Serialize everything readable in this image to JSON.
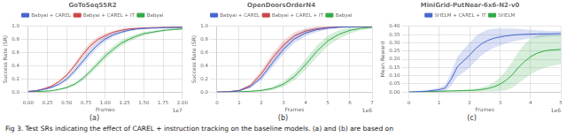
{
  "chart_data": [
    {
      "type": "line",
      "title": "GoToSeq55R2",
      "x_label": "Frames",
      "y_label": "Success Rate (SR)",
      "annotation": "1e7",
      "panel_label": "(a)",
      "xlim": [
        0,
        2.0
      ],
      "ylim": [
        0,
        1.0
      ],
      "xticks": [
        {
          "value": 0,
          "label": "0.00"
        },
        {
          "value": 0.25,
          "label": "0.25"
        },
        {
          "value": 0.5,
          "label": "0.50"
        },
        {
          "value": 0.75,
          "label": "0.75"
        },
        {
          "value": 1.0,
          "label": "1.00"
        },
        {
          "value": 1.25,
          "label": "1.25"
        },
        {
          "value": 1.5,
          "label": "1.50"
        },
        {
          "value": 1.75,
          "label": "1.75"
        },
        {
          "value": 2.0,
          "label": "2.00"
        }
      ],
      "yticks": [
        {
          "value": 0,
          "label": "0.0"
        },
        {
          "value": 0.2,
          "label": "0.2"
        },
        {
          "value": 0.4,
          "label": "0.4"
        },
        {
          "value": 0.6,
          "label": "0.6"
        },
        {
          "value": 0.8,
          "label": "0.8"
        },
        {
          "value": 1.0,
          "label": "1.0"
        }
      ],
      "grid": true,
      "legend": "top",
      "series": [
        {
          "name": "Babyai + CAREL",
          "color": "#4466cc",
          "x": [
            0,
            0.1,
            0.2,
            0.3,
            0.4,
            0.5,
            0.6,
            0.7,
            0.8,
            0.9,
            1.0,
            1.1,
            1.2,
            1.3,
            1.4,
            1.5,
            1.6,
            1.7,
            1.8,
            1.9,
            2.0
          ],
          "values": [
            0.01,
            0.02,
            0.04,
            0.07,
            0.12,
            0.2,
            0.32,
            0.46,
            0.6,
            0.72,
            0.81,
            0.87,
            0.91,
            0.94,
            0.96,
            0.97,
            0.975,
            0.978,
            0.981,
            0.983,
            0.985
          ],
          "lower": [
            0.005,
            0.013,
            0.03,
            0.055,
            0.1,
            0.17,
            0.28,
            0.41,
            0.545,
            0.67,
            0.77,
            0.84,
            0.885,
            0.92,
            0.945,
            0.958,
            0.965,
            0.97,
            0.974,
            0.977,
            0.98
          ],
          "upper": [
            0.015,
            0.027,
            0.05,
            0.085,
            0.14,
            0.23,
            0.36,
            0.51,
            0.655,
            0.77,
            0.85,
            0.9,
            0.935,
            0.96,
            0.975,
            0.982,
            0.985,
            0.986,
            0.988,
            0.989,
            0.99
          ]
        },
        {
          "name": "Babyai + CAREL + IT",
          "color": "#cc4444",
          "x": [
            0,
            0.1,
            0.2,
            0.3,
            0.4,
            0.5,
            0.6,
            0.7,
            0.8,
            0.9,
            1.0,
            1.1,
            1.2,
            1.3,
            1.4,
            1.5,
            1.6,
            1.7,
            1.8,
            1.9,
            2.0
          ],
          "values": [
            0.01,
            0.02,
            0.05,
            0.09,
            0.16,
            0.26,
            0.4,
            0.56,
            0.7,
            0.8,
            0.86,
            0.91,
            0.94,
            0.96,
            0.97,
            0.975,
            0.98,
            0.983,
            0.985,
            0.987,
            0.988
          ],
          "lower": [
            0.006,
            0.014,
            0.04,
            0.075,
            0.14,
            0.23,
            0.36,
            0.51,
            0.65,
            0.76,
            0.825,
            0.885,
            0.92,
            0.945,
            0.958,
            0.965,
            0.972,
            0.976,
            0.979,
            0.982,
            0.984
          ],
          "upper": [
            0.014,
            0.026,
            0.06,
            0.105,
            0.18,
            0.29,
            0.44,
            0.61,
            0.75,
            0.84,
            0.895,
            0.935,
            0.96,
            0.975,
            0.982,
            0.985,
            0.988,
            0.99,
            0.991,
            0.992,
            0.992
          ]
        },
        {
          "name": "Babyai",
          "color": "#33aa44",
          "x": [
            0,
            0.1,
            0.2,
            0.3,
            0.4,
            0.5,
            0.6,
            0.7,
            0.8,
            0.9,
            1.0,
            1.1,
            1.2,
            1.3,
            1.4,
            1.5,
            1.6,
            1.7,
            1.8,
            1.9,
            2.0
          ],
          "values": [
            0.005,
            0.008,
            0.012,
            0.02,
            0.04,
            0.07,
            0.12,
            0.2,
            0.31,
            0.43,
            0.55,
            0.65,
            0.74,
            0.8,
            0.85,
            0.89,
            0.91,
            0.93,
            0.945,
            0.955,
            0.962
          ],
          "lower": [
            0.002,
            0.004,
            0.006,
            0.012,
            0.028,
            0.052,
            0.095,
            0.167,
            0.27,
            0.382,
            0.5,
            0.6,
            0.695,
            0.76,
            0.815,
            0.862,
            0.888,
            0.912,
            0.93,
            0.943,
            0.952
          ],
          "upper": [
            0.008,
            0.012,
            0.018,
            0.028,
            0.052,
            0.088,
            0.145,
            0.233,
            0.35,
            0.478,
            0.6,
            0.7,
            0.785,
            0.84,
            0.885,
            0.918,
            0.932,
            0.948,
            0.96,
            0.967,
            0.972
          ]
        }
      ]
    },
    {
      "type": "line",
      "title": "OpenDoorsOrderN4",
      "x_label": "Frames",
      "y_label": "Success Rate (SR)",
      "annotation": "1e6",
      "panel_label": "(b)",
      "xlim": [
        0,
        7
      ],
      "ylim": [
        0,
        1.0
      ],
      "xticks": [
        0,
        1,
        2,
        3,
        4,
        5,
        6,
        7
      ],
      "yticks": [
        {
          "value": 0,
          "label": "0.0"
        },
        {
          "value": 0.2,
          "label": "0.2"
        },
        {
          "value": 0.4,
          "label": "0.4"
        },
        {
          "value": 0.6,
          "label": "0.6"
        },
        {
          "value": 0.8,
          "label": "0.8"
        },
        {
          "value": 1.0,
          "label": "1.0"
        }
      ],
      "grid": true,
      "legend": "top",
      "series": [
        {
          "name": "Babyai + CAREL",
          "color": "#4466cc",
          "x": [
            0,
            0.5,
            1.0,
            1.5,
            2.0,
            2.5,
            3.0,
            3.5,
            4.0,
            4.5,
            5.0,
            5.5,
            6.0,
            6.5,
            7.0
          ],
          "values": [
            0.0,
            0.005,
            0.02,
            0.08,
            0.22,
            0.44,
            0.65,
            0.81,
            0.9,
            0.95,
            0.975,
            0.988,
            0.993,
            0.996,
            0.998
          ],
          "lower": [
            0,
            0.002,
            0.012,
            0.06,
            0.18,
            0.38,
            0.58,
            0.75,
            0.85,
            0.915,
            0.953,
            0.974,
            0.984,
            0.99,
            0.994
          ],
          "upper": [
            0.001,
            0.008,
            0.028,
            0.1,
            0.26,
            0.5,
            0.72,
            0.87,
            0.95,
            0.985,
            0.997,
            1.0,
            1.0,
            1.0,
            1.0
          ]
        },
        {
          "name": "Babyai + CAREL + IT",
          "color": "#cc4444",
          "x": [
            0,
            0.5,
            1.0,
            1.5,
            2.0,
            2.5,
            3.0,
            3.5,
            4.0,
            4.5,
            5.0,
            5.5,
            6.0,
            6.5,
            7.0
          ],
          "values": [
            0.0,
            0.005,
            0.025,
            0.1,
            0.28,
            0.52,
            0.72,
            0.86,
            0.93,
            0.965,
            0.982,
            0.991,
            0.995,
            0.997,
            0.998
          ],
          "lower": [
            0,
            0.002,
            0.015,
            0.075,
            0.23,
            0.455,
            0.655,
            0.805,
            0.888,
            0.935,
            0.964,
            0.98,
            0.988,
            0.992,
            0.995
          ],
          "upper": [
            0.001,
            0.008,
            0.035,
            0.125,
            0.33,
            0.585,
            0.785,
            0.915,
            0.972,
            0.995,
            1.0,
            1.0,
            1.0,
            1.0,
            1.0
          ]
        },
        {
          "name": "Babyai",
          "color": "#33aa44",
          "x": [
            0,
            0.5,
            1.0,
            1.5,
            2.0,
            2.5,
            3.0,
            3.5,
            4.0,
            4.5,
            5.0,
            5.5,
            6.0,
            6.5,
            7.0
          ],
          "values": [
            0.0,
            0.002,
            0.005,
            0.012,
            0.025,
            0.055,
            0.12,
            0.24,
            0.42,
            0.62,
            0.78,
            0.88,
            0.94,
            0.972,
            0.988
          ],
          "lower": [
            0,
            0,
            0.001,
            0.004,
            0.01,
            0.03,
            0.08,
            0.18,
            0.34,
            0.53,
            0.7,
            0.815,
            0.892,
            0.942,
            0.97
          ],
          "upper": [
            0.001,
            0.004,
            0.009,
            0.02,
            0.04,
            0.08,
            0.16,
            0.3,
            0.5,
            0.71,
            0.86,
            0.945,
            0.988,
            1.0,
            1.0
          ]
        }
      ]
    },
    {
      "type": "line",
      "title": "MiniGrid-PutNear-6x6-N2-v0",
      "x_label": "Frames",
      "y_label": "Mean Reward",
      "annotation": "1e6",
      "panel_label": "(c)",
      "xlim": [
        0,
        5
      ],
      "ylim": [
        0,
        0.4
      ],
      "xticks": [
        0,
        1,
        2,
        3,
        4,
        5
      ],
      "yticks": [
        {
          "value": 0,
          "label": "0.00"
        },
        {
          "value": 0.05,
          "label": "0.05"
        },
        {
          "value": 0.1,
          "label": "0.10"
        },
        {
          "value": 0.15,
          "label": "0.15"
        },
        {
          "value": 0.2,
          "label": "0.20"
        },
        {
          "value": 0.25,
          "label": "0.25"
        },
        {
          "value": 0.3,
          "label": "0.30"
        },
        {
          "value": 0.35,
          "label": "0.35"
        },
        {
          "value": 0.4,
          "label": "0.40"
        }
      ],
      "grid": true,
      "legend": "top",
      "series": [
        {
          "name": "SHELM + CAREL + IT",
          "color": "#4466cc",
          "x": [
            0,
            0.2,
            0.4,
            0.6,
            0.8,
            1.0,
            1.2,
            1.4,
            1.6,
            1.8,
            2.0,
            2.2,
            2.4,
            2.6,
            2.8,
            3.0,
            3.2,
            3.4,
            3.6,
            3.8,
            4.0,
            4.2,
            4.4,
            4.6,
            4.8,
            5.0
          ],
          "values": [
            0.0,
            0.002,
            0.004,
            0.006,
            0.01,
            0.015,
            0.025,
            0.08,
            0.155,
            0.19,
            0.225,
            0.265,
            0.295,
            0.315,
            0.328,
            0.336,
            0.342,
            0.347,
            0.35,
            0.352,
            0.353,
            0.354,
            0.355,
            0.355,
            0.356,
            0.357
          ],
          "lower": [
            0,
            0,
            0.001,
            0.001,
            0.002,
            0.003,
            0.005,
            0.04,
            0.095,
            0.12,
            0.15,
            0.19,
            0.225,
            0.25,
            0.27,
            0.284,
            0.296,
            0.307,
            0.315,
            0.322,
            0.327,
            0.331,
            0.335,
            0.337,
            0.34,
            0.342
          ],
          "upper": [
            0.001,
            0.004,
            0.007,
            0.011,
            0.018,
            0.027,
            0.045,
            0.12,
            0.215,
            0.26,
            0.3,
            0.34,
            0.365,
            0.38,
            0.386,
            0.388,
            0.388,
            0.387,
            0.385,
            0.382,
            0.379,
            0.377,
            0.375,
            0.373,
            0.372,
            0.372
          ]
        },
        {
          "name": "SHELM",
          "color": "#33aa44",
          "x": [
            0,
            0.2,
            0.4,
            0.6,
            0.8,
            1.0,
            1.2,
            1.4,
            1.6,
            1.8,
            2.0,
            2.2,
            2.4,
            2.6,
            2.8,
            3.0,
            3.2,
            3.4,
            3.6,
            3.8,
            4.0,
            4.2,
            4.4,
            4.6,
            4.8,
            5.0
          ],
          "values": [
            0.0,
            0.001,
            0.002,
            0.003,
            0.004,
            0.005,
            0.006,
            0.007,
            0.008,
            0.009,
            0.01,
            0.012,
            0.016,
            0.022,
            0.032,
            0.048,
            0.072,
            0.105,
            0.148,
            0.185,
            0.215,
            0.235,
            0.248,
            0.255,
            0.258,
            0.26
          ],
          "lower": [
            0,
            0,
            0,
            0.001,
            0.001,
            0.002,
            0.002,
            0.003,
            0.003,
            0.003,
            0.003,
            0.003,
            0.003,
            0.004,
            0.004,
            0.006,
            0.012,
            0.025,
            0.053,
            0.08,
            0.107,
            0.127,
            0.143,
            0.155,
            0.163,
            0.17
          ],
          "upper": [
            0.001,
            0.002,
            0.004,
            0.005,
            0.007,
            0.008,
            0.01,
            0.011,
            0.013,
            0.015,
            0.017,
            0.021,
            0.029,
            0.04,
            0.06,
            0.09,
            0.132,
            0.185,
            0.243,
            0.29,
            0.323,
            0.343,
            0.353,
            0.355,
            0.353,
            0.35
          ]
        }
      ]
    }
  ],
  "caption": "Fig 3.  Test SRs indicating the effect of CAREL + instruction tracking on the baseline models. (a) and (b) are based on"
}
